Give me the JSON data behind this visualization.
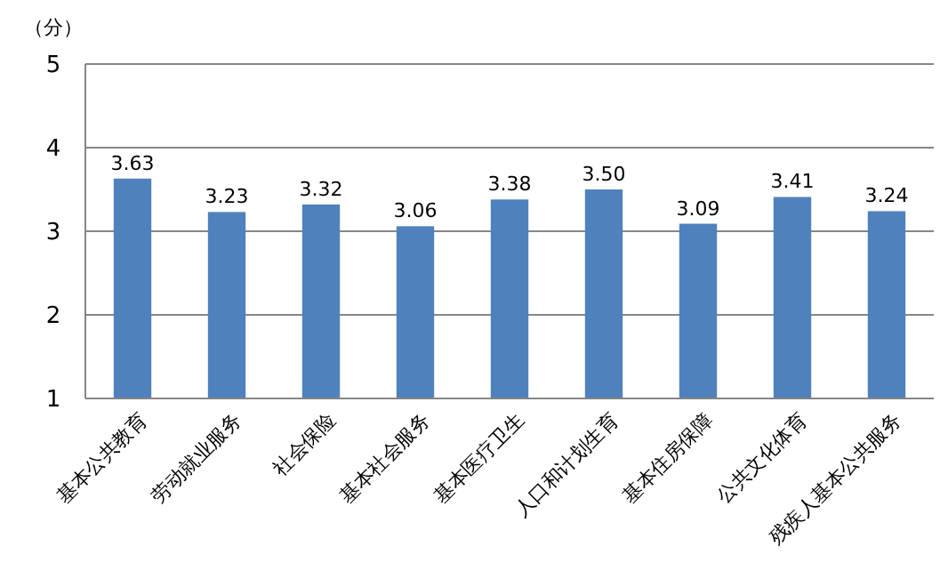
{
  "chart_data": {
    "type": "bar",
    "ylabel": "（分）",
    "categories": [
      "基本公共教育",
      "劳动就业服务",
      "社会保险",
      "基本社会服务",
      "基本医疗卫生",
      "人口和计划生育",
      "基本住房保障",
      "公共文化体育",
      "残疾人基本公共服务"
    ],
    "values": [
      3.63,
      3.23,
      3.32,
      3.06,
      3.38,
      3.5,
      3.09,
      3.41,
      3.24
    ],
    "value_labels": [
      "3.63",
      "3.23",
      "3.32",
      "3.06",
      "3.38",
      "3.50",
      "3.09",
      "3.41",
      "3.24"
    ],
    "color": "#4f81bd",
    "ylim": [
      1,
      5
    ],
    "yticks": [
      1,
      2,
      3,
      4,
      5
    ],
    "grid": "y"
  }
}
